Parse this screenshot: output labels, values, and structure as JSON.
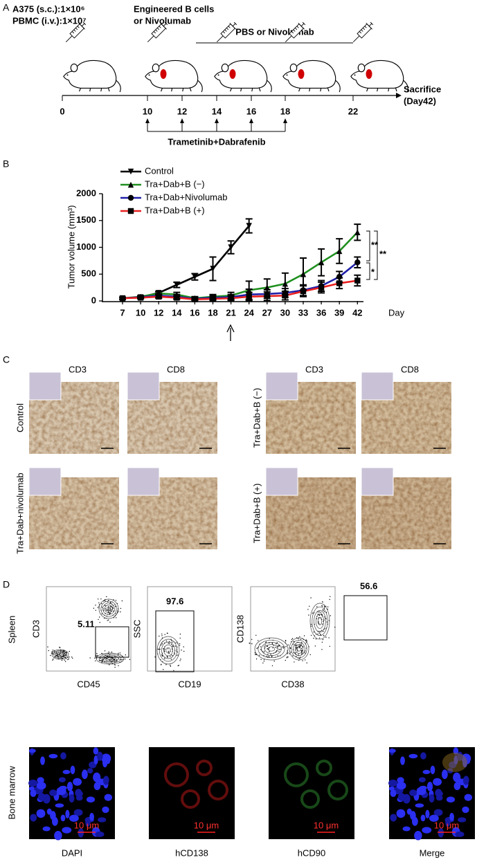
{
  "panel_a": {
    "label": "A",
    "dose_lines": [
      "A375 (s.c.):1×10⁶",
      "PBMC (i.v.):1×10⁷"
    ],
    "treatment_lines": [
      "Engineered B cells",
      "or Nivolumab"
    ],
    "followup": "PBS or Nivolumab",
    "days": [
      "0",
      "10",
      "12",
      "14",
      "16",
      "18",
      "22"
    ],
    "endpoint": [
      "Sacrifice",
      "(Day42)"
    ],
    "drug": "Trametinib+Dabrafenib"
  },
  "chart_data": {
    "type": "line",
    "panel_label": "B",
    "y_label": "Tumor volume (mm³)",
    "x_label": "Day",
    "categories": [
      "7",
      "10",
      "12",
      "14",
      "16",
      "18",
      "21",
      "24",
      "27",
      "30",
      "33",
      "36",
      "39",
      "42"
    ],
    "series": [
      {
        "name": "Control",
        "color": "#000000",
        "marker": "v",
        "values": [
          50,
          70,
          150,
          300,
          450,
          600,
          1000,
          1400,
          null,
          null,
          null,
          null,
          null,
          null
        ],
        "errors": [
          20,
          20,
          30,
          50,
          60,
          220,
          120,
          130,
          null,
          null,
          null,
          null,
          null,
          null
        ]
      },
      {
        "name": "Tra+Dab+B (−)",
        "color": "#1f8f1f",
        "marker": "^",
        "values": [
          50,
          80,
          140,
          120,
          50,
          80,
          100,
          200,
          250,
          320,
          500,
          720,
          930,
          1280
        ],
        "errors": [
          20,
          20,
          30,
          40,
          30,
          40,
          60,
          170,
          160,
          200,
          300,
          250,
          230,
          150
        ]
      },
      {
        "name": "Tra+Dab+Nivolumab",
        "color": "#1f1fa8",
        "marker": "o",
        "values": [
          50,
          70,
          100,
          80,
          40,
          60,
          70,
          120,
          130,
          150,
          200,
          280,
          450,
          720
        ],
        "errors": [
          20,
          20,
          30,
          40,
          20,
          40,
          50,
          100,
          80,
          80,
          100,
          100,
          100,
          100
        ]
      },
      {
        "name": "Tra+Dab+B (+)",
        "color": "#e82020",
        "marker": "s",
        "values": [
          50,
          60,
          80,
          60,
          30,
          40,
          50,
          80,
          90,
          100,
          180,
          250,
          330,
          380
        ],
        "errors": [
          20,
          20,
          30,
          30,
          20,
          30,
          40,
          80,
          80,
          80,
          100,
          100,
          100,
          100
        ]
      }
    ],
    "ylim": [
      0,
      2000
    ],
    "yticks": [
      0,
      500,
      1000,
      1500,
      2000
    ],
    "legend": "upper left",
    "annotations": [
      "**",
      "**",
      "*"
    ]
  },
  "panel_c": {
    "label": "C",
    "stains": [
      "CD3",
      "CD8"
    ],
    "groups": [
      "Control",
      "Tra+Dab+nivolumab",
      "Tra+Dab+B (−)",
      "Tra+Dab+B (+)"
    ]
  },
  "panel_d": {
    "label": "D",
    "tissue_top": "Spleen",
    "flow_plots": [
      {
        "y_label": "CD3",
        "x_label": "CD45",
        "gate": "5.11"
      },
      {
        "y_label": "SSC",
        "x_label": "CD19",
        "gate": "97.6"
      },
      {
        "y_label": "CD138",
        "x_label": "CD38",
        "gate": "56.6"
      }
    ],
    "tissue_bottom": "Bone marrow",
    "channels": [
      "DAPI",
      "hCD138",
      "hCD90",
      "Merge"
    ],
    "scale_bar": "10 μm"
  }
}
